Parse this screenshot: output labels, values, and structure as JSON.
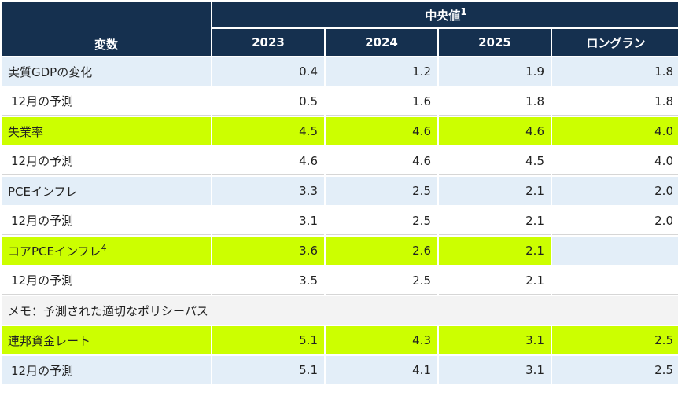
{
  "header": {
    "variable_label": "変数",
    "median_label": "中央値",
    "median_footnote": "1",
    "columns": [
      "2023",
      "2024",
      "2025",
      "ロングラン"
    ]
  },
  "rows": [
    {
      "label": "実質GDPの変化",
      "values": [
        "0.4",
        "1.2",
        "1.9",
        "1.8"
      ],
      "style": "blue"
    },
    {
      "label": "12月の予測",
      "values": [
        "0.5",
        "1.6",
        "1.8",
        "1.8"
      ],
      "style": "white"
    },
    {
      "label": "失業率",
      "values": [
        "4.5",
        "4.6",
        "4.6",
        "4.0"
      ],
      "style": "green"
    },
    {
      "label": "12月の予測",
      "values": [
        "4.6",
        "4.6",
        "4.5",
        "4.0"
      ],
      "style": "white"
    },
    {
      "label": "PCEインフレ",
      "values": [
        "3.3",
        "2.5",
        "2.1",
        "2.0"
      ],
      "style": "blue"
    },
    {
      "label": "12月の予測",
      "values": [
        "3.1",
        "2.5",
        "2.1",
        "2.0"
      ],
      "style": "white"
    },
    {
      "label": "コアPCEインフレ",
      "footnote": "4",
      "values": [
        "3.6",
        "2.6",
        "2.1",
        ""
      ],
      "style": "green"
    },
    {
      "label": "12月の予測",
      "values": [
        "3.5",
        "2.5",
        "2.1",
        ""
      ],
      "style": "white"
    }
  ],
  "memo": "メモ：予測された適切なポリシーパス",
  "rate_rows": [
    {
      "label": "連邦資金レート",
      "values": [
        "5.1",
        "4.3",
        "3.1",
        "2.5"
      ],
      "style": "green"
    },
    {
      "label": "12月の予測",
      "values": [
        "5.1",
        "4.1",
        "3.1",
        "2.5"
      ],
      "style": "blue"
    }
  ]
}
